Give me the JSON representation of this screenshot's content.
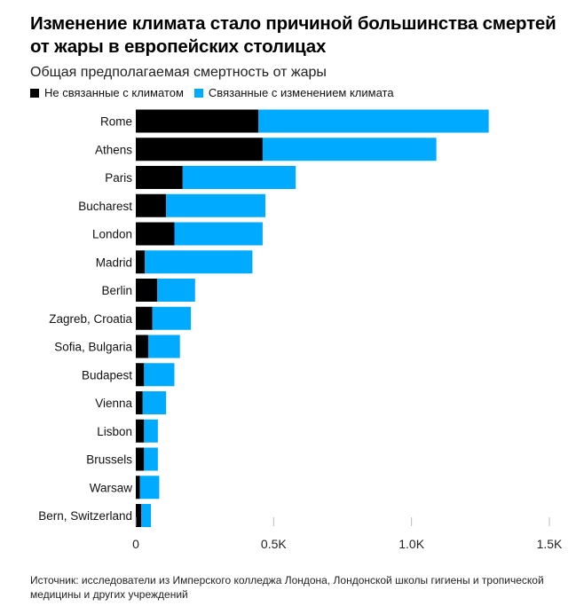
{
  "title": "Изменение климата стало причиной большинства смертей от жары в европейских столицах",
  "subtitle": "Общая предполагаемая смертность от жары",
  "legend": {
    "items": [
      {
        "label": "Не связанные с климатом",
        "color": "#000000"
      },
      {
        "label": "Связанные с изменением климата",
        "color": "#00aaff"
      }
    ]
  },
  "colors": {
    "non_climate": "#000000",
    "climate": "#00aaff",
    "tick_line": "#bbbbbb"
  },
  "chart_data": {
    "type": "bar",
    "orientation": "horizontal",
    "stacked": true,
    "categories": [
      "Rome",
      "Athens",
      "Paris",
      "Bucharest",
      "London",
      "Madrid",
      "Berlin",
      "Zagreb, Croatia",
      "Sofia, Bulgaria",
      "Budapest",
      "Vienna",
      "Lisbon",
      "Brussels",
      "Warsaw",
      "Bern, Switzerland"
    ],
    "series": [
      {
        "name": "Не связанные с климатом",
        "values": [
          445,
          460,
          170,
          110,
          140,
          33,
          78,
          60,
          45,
          30,
          25,
          30,
          30,
          15,
          20
        ]
      },
      {
        "name": "Связанные с изменением климата",
        "values": [
          835,
          630,
          410,
          360,
          320,
          390,
          137,
          140,
          115,
          110,
          85,
          50,
          50,
          70,
          35
        ]
      }
    ],
    "xlim": [
      0,
      1500
    ],
    "xticks": [
      0,
      500,
      1000,
      1500
    ],
    "xtick_labels": [
      "0",
      "0.5K",
      "1.0K",
      "1.5K"
    ],
    "grid": false
  },
  "footnote": "Источник: исследователи из Имперского колледжа Лондона, Лондонской школы гигиены и тропической медицины и других учреждений"
}
